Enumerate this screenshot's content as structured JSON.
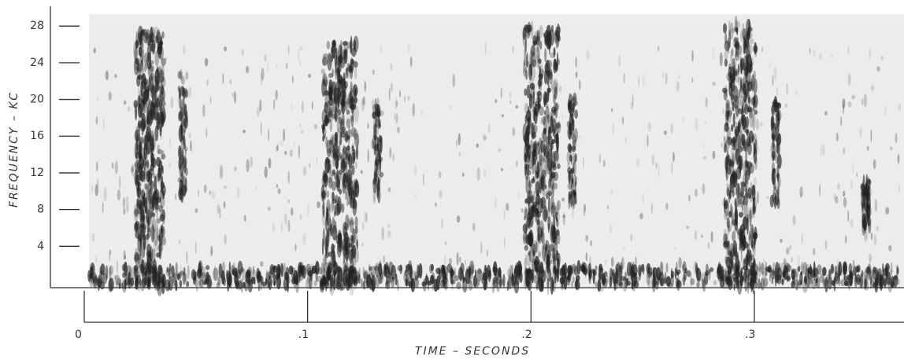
{
  "chart_data": {
    "type": "spectrogram",
    "x_label": "TIME – SECONDS",
    "y_label": "FREQUENCY – KC",
    "xlim": [
      0,
      0.367
    ],
    "xticks": [
      0,
      {
        "value": 0.1,
        "label": ".1"
      },
      {
        "value": 0.2,
        "label": ".2"
      },
      {
        "value": 0.3,
        "label": ".3"
      }
    ],
    "ylim": [
      0,
      29.3
    ],
    "yticks": [
      4,
      8,
      12,
      16,
      20,
      24,
      28
    ]
  }
}
